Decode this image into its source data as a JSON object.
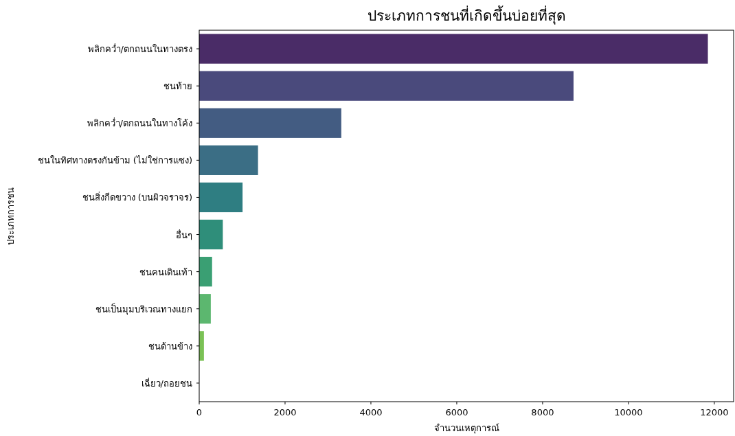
{
  "chart_data": {
    "type": "bar",
    "orientation": "horizontal",
    "title": "ประเภทการชนที่เกิดขึ้นบ่อยที่สุด",
    "xlabel": "จำนวนเหตุการณ์",
    "ylabel": "ประเภทการชน",
    "categories": [
      "พลิกคว่ำ/ตกถนนในทางตรง",
      "ชนท้าย",
      "พลิกคว่ำ/ตกถนนในทางโค้ง",
      "ชนในทิศทางตรงกันข้าม (ไม่ใช่การแซง)",
      "ชนสิ่งกีดขวาง (บนผิวจราจร)",
      "อื่นๆ",
      "ชนคนเดินเท้า",
      "ชนเป็นมุมบริเวณทางแยก",
      "ชนด้านข้าง",
      "เฉี่ยว/ถอยชน"
    ],
    "values": [
      11850,
      8720,
      3310,
      1370,
      1010,
      550,
      300,
      270,
      110,
      0
    ],
    "colors": [
      "#4a2c67",
      "#4a4a7c",
      "#435c82",
      "#3b6e85",
      "#2f7e82",
      "#2f8e7a",
      "#3a9f73",
      "#5cb76f",
      "#7bc256",
      "#a8cc45"
    ],
    "xlim": [
      0,
      12450
    ],
    "xticks": [
      0,
      2000,
      4000,
      6000,
      8000,
      10000,
      12000
    ],
    "grid": false
  }
}
